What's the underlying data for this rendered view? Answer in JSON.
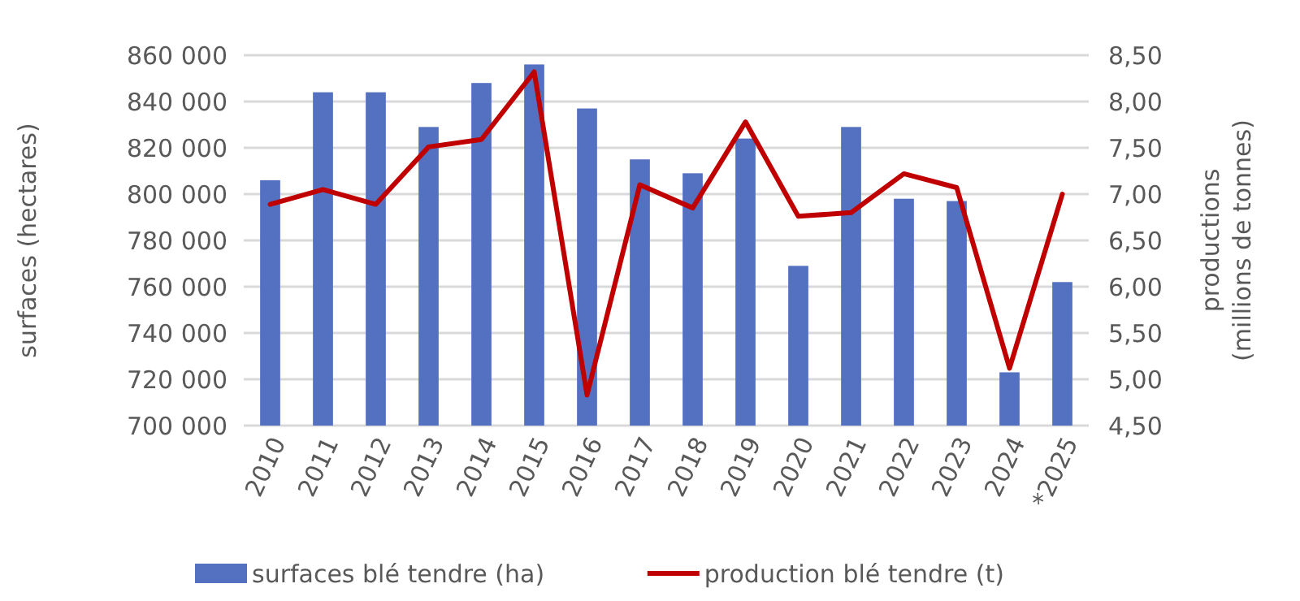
{
  "chart_data": {
    "type": "bar",
    "categories": [
      "2010",
      "2011",
      "2012",
      "2013",
      "2014",
      "2015",
      "2016",
      "2017",
      "2018",
      "2019",
      "2020",
      "2021",
      "2022",
      "2023",
      "2024",
      "*2025"
    ],
    "ylabel": "surfaces (hectares)",
    "y2label": "productions (millions de tonnes)",
    "series": [
      {
        "name": "surfaces blé tendre (ha)",
        "color": "#5470c0",
        "values": [
          806000,
          844000,
          844000,
          829000,
          848000,
          856000,
          837000,
          815000,
          809000,
          824000,
          769000,
          829000,
          798000,
          797000,
          723000,
          762000
        ]
      },
      {
        "name": "production blé tendre (t)",
        "type": "line",
        "axis": "y2",
        "color": "#c00000",
        "values": [
          6.89,
          7.05,
          6.89,
          7.51,
          7.59,
          8.32,
          4.83,
          7.1,
          6.85,
          7.78,
          6.76,
          6.8,
          7.22,
          7.07,
          5.12,
          7.0
        ]
      }
    ],
    "ylim": [
      700000,
      860000
    ],
    "yticks": [
      {
        "value": 700000,
        "label": "700 000"
      },
      {
        "value": 720000,
        "label": "720 000"
      },
      {
        "value": 740000,
        "label": "740 000"
      },
      {
        "value": 760000,
        "label": "760 000"
      },
      {
        "value": 780000,
        "label": "780 000"
      },
      {
        "value": 800000,
        "label": "800 000"
      },
      {
        "value": 820000,
        "label": "820 000"
      },
      {
        "value": 840000,
        "label": "840 000"
      },
      {
        "value": 860000,
        "label": "860 000"
      }
    ],
    "y2lim": [
      4.5,
      8.5
    ],
    "y2ticks": [
      {
        "value": 4.5,
        "label": "4,50"
      },
      {
        "value": 5,
        "label": "5,00"
      },
      {
        "value": 5.5,
        "label": "5,50"
      },
      {
        "value": 6,
        "label": "6,00"
      },
      {
        "value": 6.5,
        "label": "6,50"
      },
      {
        "value": 7,
        "label": "7,00"
      },
      {
        "value": 7.5,
        "label": "7,50"
      },
      {
        "value": 8,
        "label": "8,00"
      },
      {
        "value": 8.5,
        "label": "8,50"
      }
    ],
    "grid": "y",
    "legend": "bottom"
  }
}
